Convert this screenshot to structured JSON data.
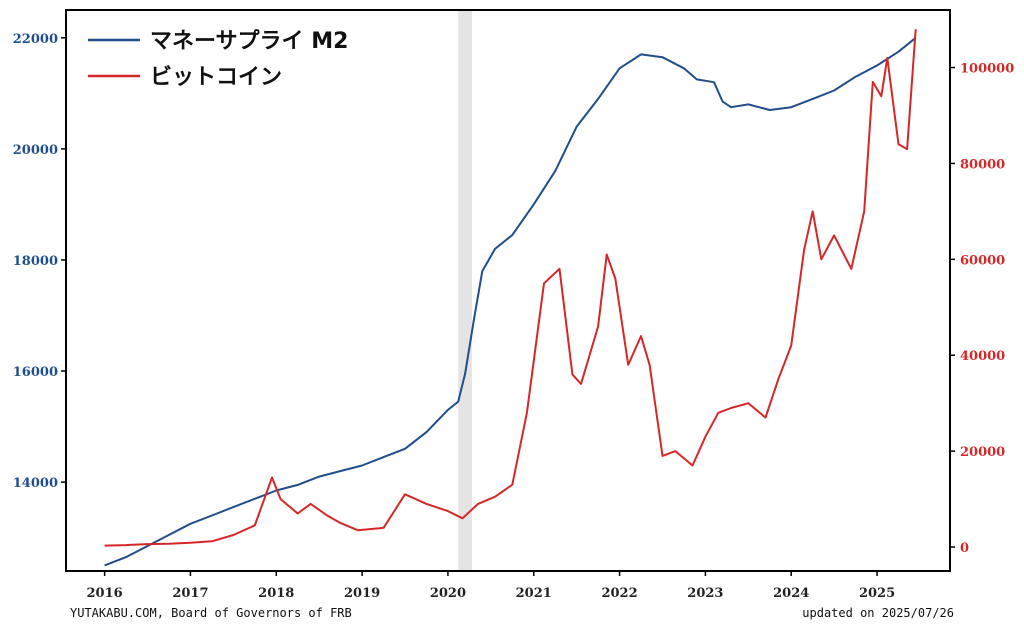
{
  "chart_data": {
    "type": "line",
    "title": "",
    "legend_placement": "top-left",
    "grid": false,
    "x_ticks": [
      "2016",
      "2017",
      "2018",
      "2019",
      "2020",
      "2021",
      "2022",
      "2023",
      "2024",
      "2025"
    ],
    "y_left": {
      "range": [
        12400,
        22500
      ],
      "ticks": [
        14000,
        16000,
        18000,
        20000,
        22000
      ],
      "color": "#1f4e8c"
    },
    "y_right": {
      "range": [
        -5000,
        112000
      ],
      "ticks": [
        0,
        20000,
        40000,
        60000,
        80000,
        100000
      ],
      "color": "#d62728"
    },
    "shaded_region": {
      "start": 2020.12,
      "end": 2020.28,
      "color": "#d9d9d9"
    },
    "series": [
      {
        "name": "マネーサプライ M2",
        "axis": "left",
        "color": "#1f4e8c",
        "points": [
          [
            2016.0,
            12500
          ],
          [
            2016.25,
            12650
          ],
          [
            2016.5,
            12850
          ],
          [
            2016.75,
            13050
          ],
          [
            2017.0,
            13250
          ],
          [
            2017.25,
            13400
          ],
          [
            2017.5,
            13550
          ],
          [
            2017.75,
            13700
          ],
          [
            2018.0,
            13850
          ],
          [
            2018.25,
            13950
          ],
          [
            2018.5,
            14100
          ],
          [
            2018.75,
            14200
          ],
          [
            2019.0,
            14300
          ],
          [
            2019.25,
            14450
          ],
          [
            2019.5,
            14600
          ],
          [
            2019.75,
            14900
          ],
          [
            2020.0,
            15300
          ],
          [
            2020.12,
            15450
          ],
          [
            2020.2,
            15950
          ],
          [
            2020.3,
            16900
          ],
          [
            2020.4,
            17800
          ],
          [
            2020.55,
            18200
          ],
          [
            2020.75,
            18450
          ],
          [
            2021.0,
            19000
          ],
          [
            2021.25,
            19600
          ],
          [
            2021.5,
            20400
          ],
          [
            2021.75,
            20900
          ],
          [
            2022.0,
            21450
          ],
          [
            2022.25,
            21700
          ],
          [
            2022.5,
            21650
          ],
          [
            2022.75,
            21450
          ],
          [
            2022.9,
            21250
          ],
          [
            2023.1,
            21200
          ],
          [
            2023.2,
            20850
          ],
          [
            2023.3,
            20750
          ],
          [
            2023.5,
            20800
          ],
          [
            2023.75,
            20700
          ],
          [
            2024.0,
            20750
          ],
          [
            2024.25,
            20900
          ],
          [
            2024.5,
            21050
          ],
          [
            2024.75,
            21300
          ],
          [
            2025.0,
            21500
          ],
          [
            2025.25,
            21750
          ],
          [
            2025.45,
            22000
          ]
        ]
      },
      {
        "name": "ビットコイン",
        "axis": "right",
        "color": "#d62728",
        "points": [
          [
            2016.0,
            300
          ],
          [
            2016.25,
            400
          ],
          [
            2016.5,
            600
          ],
          [
            2016.75,
            700
          ],
          [
            2017.0,
            900
          ],
          [
            2017.25,
            1200
          ],
          [
            2017.5,
            2500
          ],
          [
            2017.75,
            4500
          ],
          [
            2017.95,
            14500
          ],
          [
            2018.05,
            10000
          ],
          [
            2018.25,
            7000
          ],
          [
            2018.4,
            9000
          ],
          [
            2018.6,
            6500
          ],
          [
            2018.75,
            5000
          ],
          [
            2018.95,
            3500
          ],
          [
            2019.25,
            4000
          ],
          [
            2019.5,
            11000
          ],
          [
            2019.75,
            9000
          ],
          [
            2020.0,
            7500
          ],
          [
            2020.17,
            6000
          ],
          [
            2020.35,
            9000
          ],
          [
            2020.55,
            10500
          ],
          [
            2020.75,
            13000
          ],
          [
            2020.92,
            28000
          ],
          [
            2021.12,
            55000
          ],
          [
            2021.3,
            58000
          ],
          [
            2021.45,
            36000
          ],
          [
            2021.55,
            34000
          ],
          [
            2021.75,
            46000
          ],
          [
            2021.85,
            61000
          ],
          [
            2021.95,
            56000
          ],
          [
            2022.1,
            38000
          ],
          [
            2022.25,
            44000
          ],
          [
            2022.35,
            38000
          ],
          [
            2022.5,
            19000
          ],
          [
            2022.65,
            20000
          ],
          [
            2022.85,
            17000
          ],
          [
            2023.0,
            23000
          ],
          [
            2023.15,
            28000
          ],
          [
            2023.3,
            29000
          ],
          [
            2023.5,
            30000
          ],
          [
            2023.7,
            27000
          ],
          [
            2023.85,
            35000
          ],
          [
            2024.0,
            42000
          ],
          [
            2024.15,
            62000
          ],
          [
            2024.25,
            70000
          ],
          [
            2024.35,
            60000
          ],
          [
            2024.5,
            65000
          ],
          [
            2024.7,
            58000
          ],
          [
            2024.85,
            70000
          ],
          [
            2024.95,
            97000
          ],
          [
            2025.05,
            94000
          ],
          [
            2025.12,
            102000
          ],
          [
            2025.25,
            84000
          ],
          [
            2025.35,
            83000
          ],
          [
            2025.45,
            108000
          ]
        ]
      }
    ]
  },
  "footer": {
    "source": "YUTAKABU.COM, Board of Governors of FRB",
    "updated": "updated on 2025/07/26"
  }
}
